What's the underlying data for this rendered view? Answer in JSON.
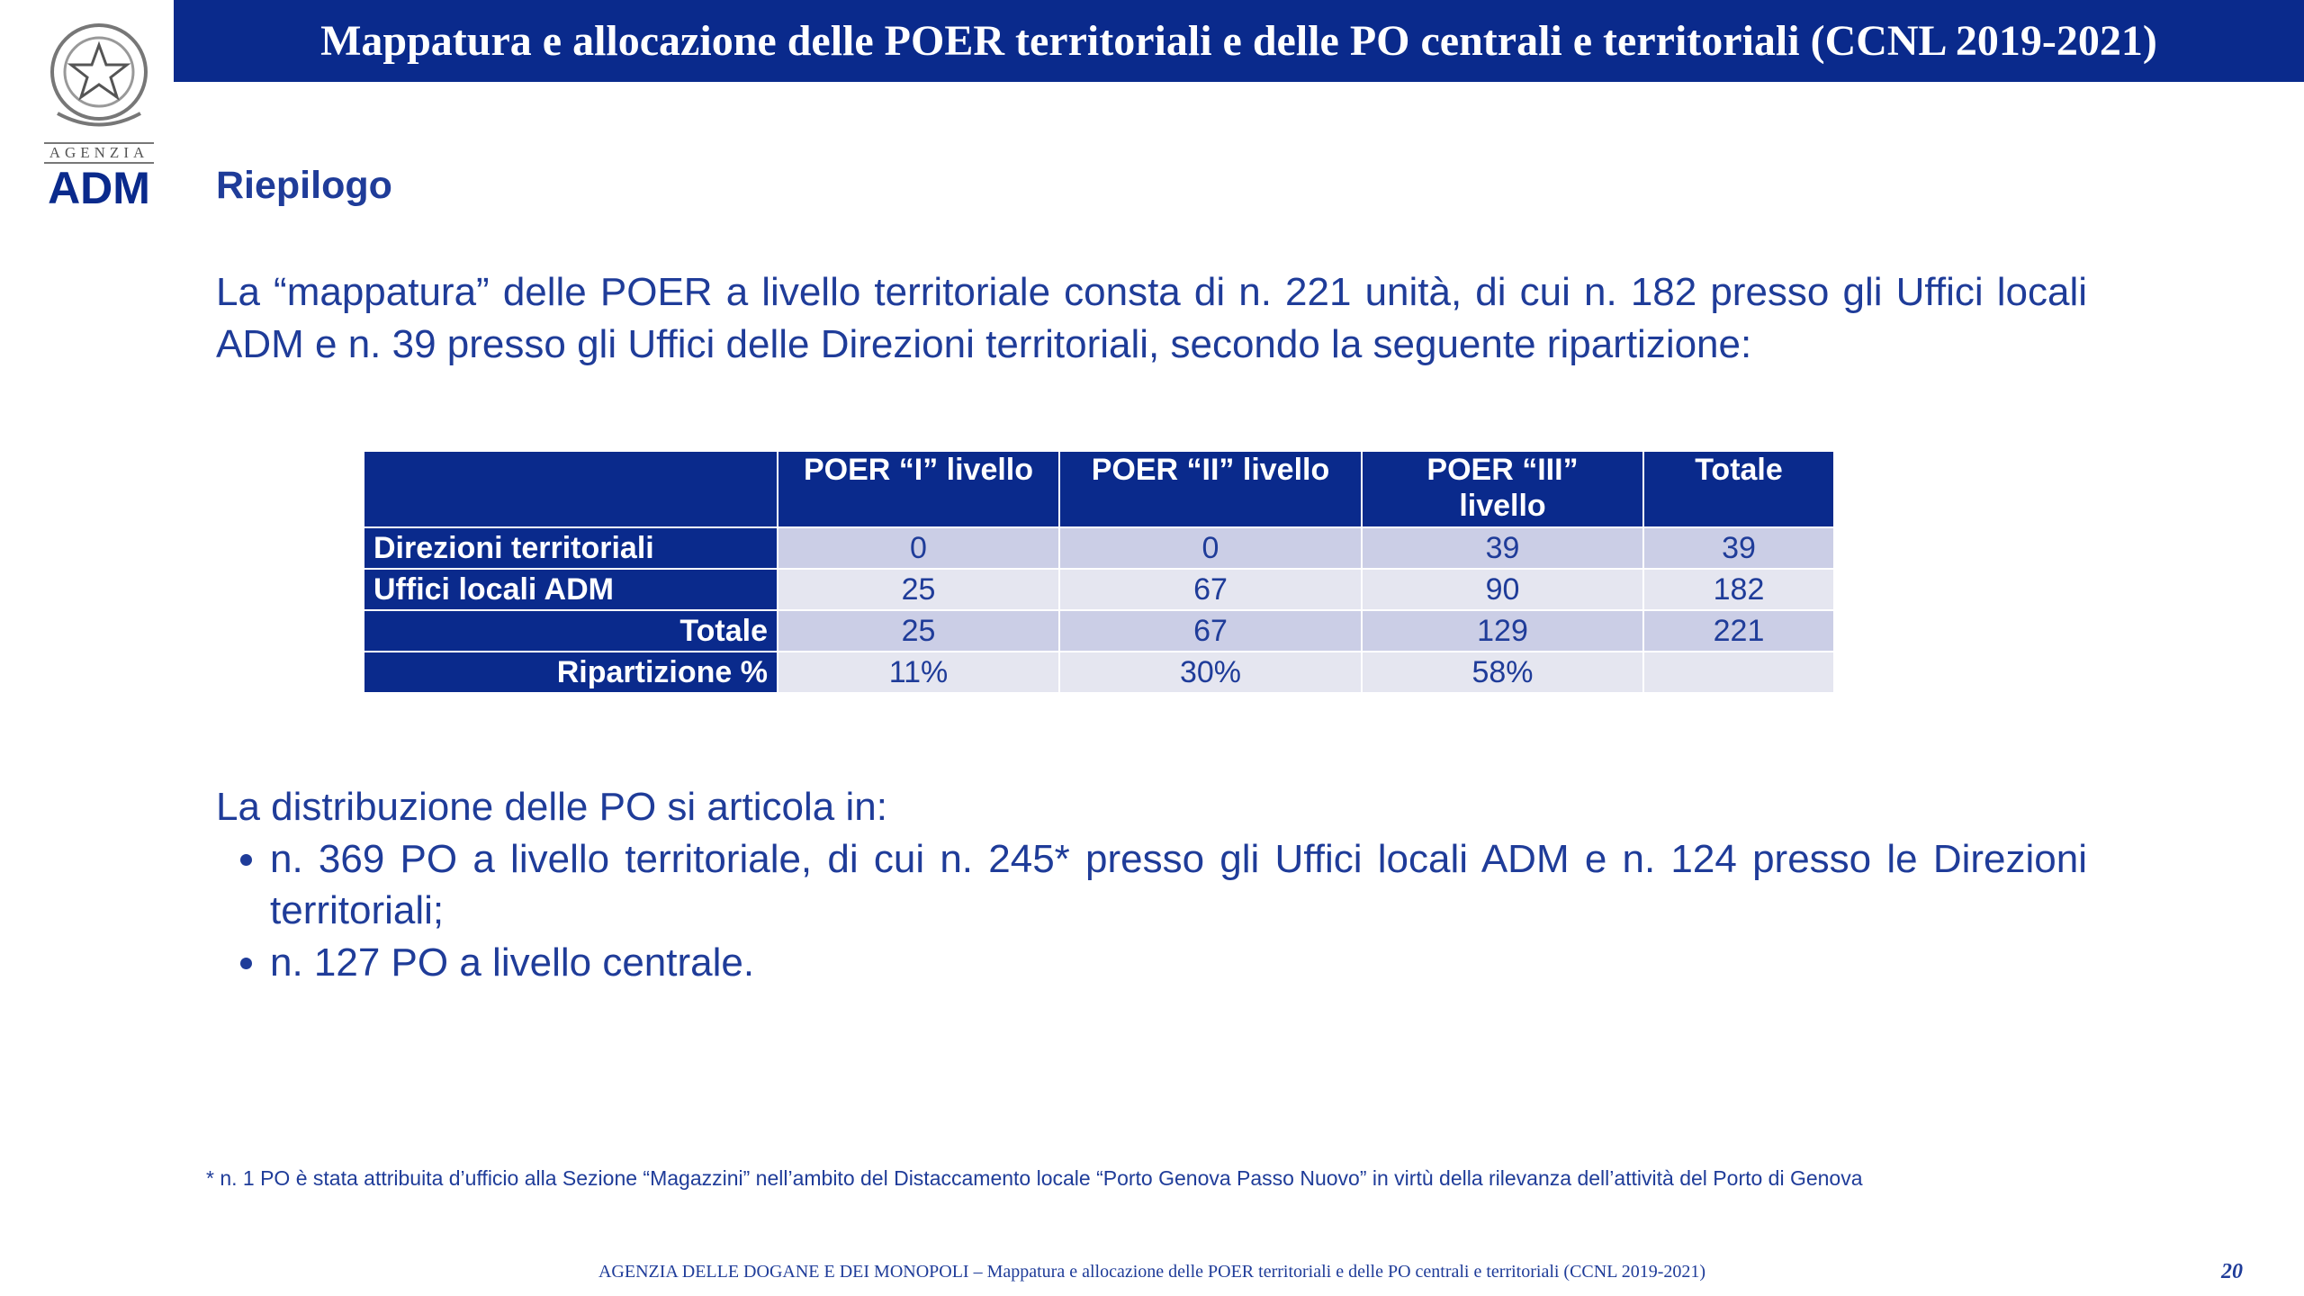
{
  "header": {
    "title": "Mappatura e allocazione delle POER territoriali e delle PO centrali e territoriali (CCNL 2019-2021)"
  },
  "logo": {
    "agency": "AGENZIA",
    "name": "ADM"
  },
  "section_title": "Riepilogo",
  "paragraph": "La “mappatura” delle POER a livello territoriale consta di n. 221 unità, di cui n. 182 presso gli Uffici locali ADM e n. 39 presso gli Uffici delle Direzioni territoriali, secondo la seguente ripartizione:",
  "table": {
    "columns": [
      "POER “I” livello",
      "POER “II” livello",
      "POER “III” livello",
      "Totale"
    ],
    "rows": [
      {
        "label": "Direzioni territoriali",
        "cells": [
          0,
          0,
          39,
          39
        ]
      },
      {
        "label": "Uffici locali ADM",
        "cells": [
          25,
          67,
          90,
          182
        ]
      },
      {
        "label": "Totale",
        "cells": [
          25,
          67,
          129,
          221
        ]
      },
      {
        "label": "Ripartizione %",
        "cells": [
          "11%",
          "30%",
          "58%"
        ]
      }
    ]
  },
  "distribution": {
    "intro": "La distribuzione delle PO si articola in:",
    "items": [
      "n. 369 PO a livello territoriale, di cui n. 245* presso gli Uffici locali ADM e n. 124 presso le Direzioni territoriali;",
      "n. 127 PO a livello centrale."
    ]
  },
  "footnote": "* n. 1 PO è stata attribuita d’ufficio alla Sezione “Magazzini” nell’ambito del Distaccamento locale “Porto Genova Passo Nuovo” in virtù della rilevanza dell’attività del Porto di Genova",
  "footer": {
    "text": "AGENZIA DELLE DOGANE E DEI MONOPOLI – Mappatura e allocazione delle POER territoriali e delle PO centrali e territoriali (CCNL 2019-2021)",
    "page": "20"
  }
}
